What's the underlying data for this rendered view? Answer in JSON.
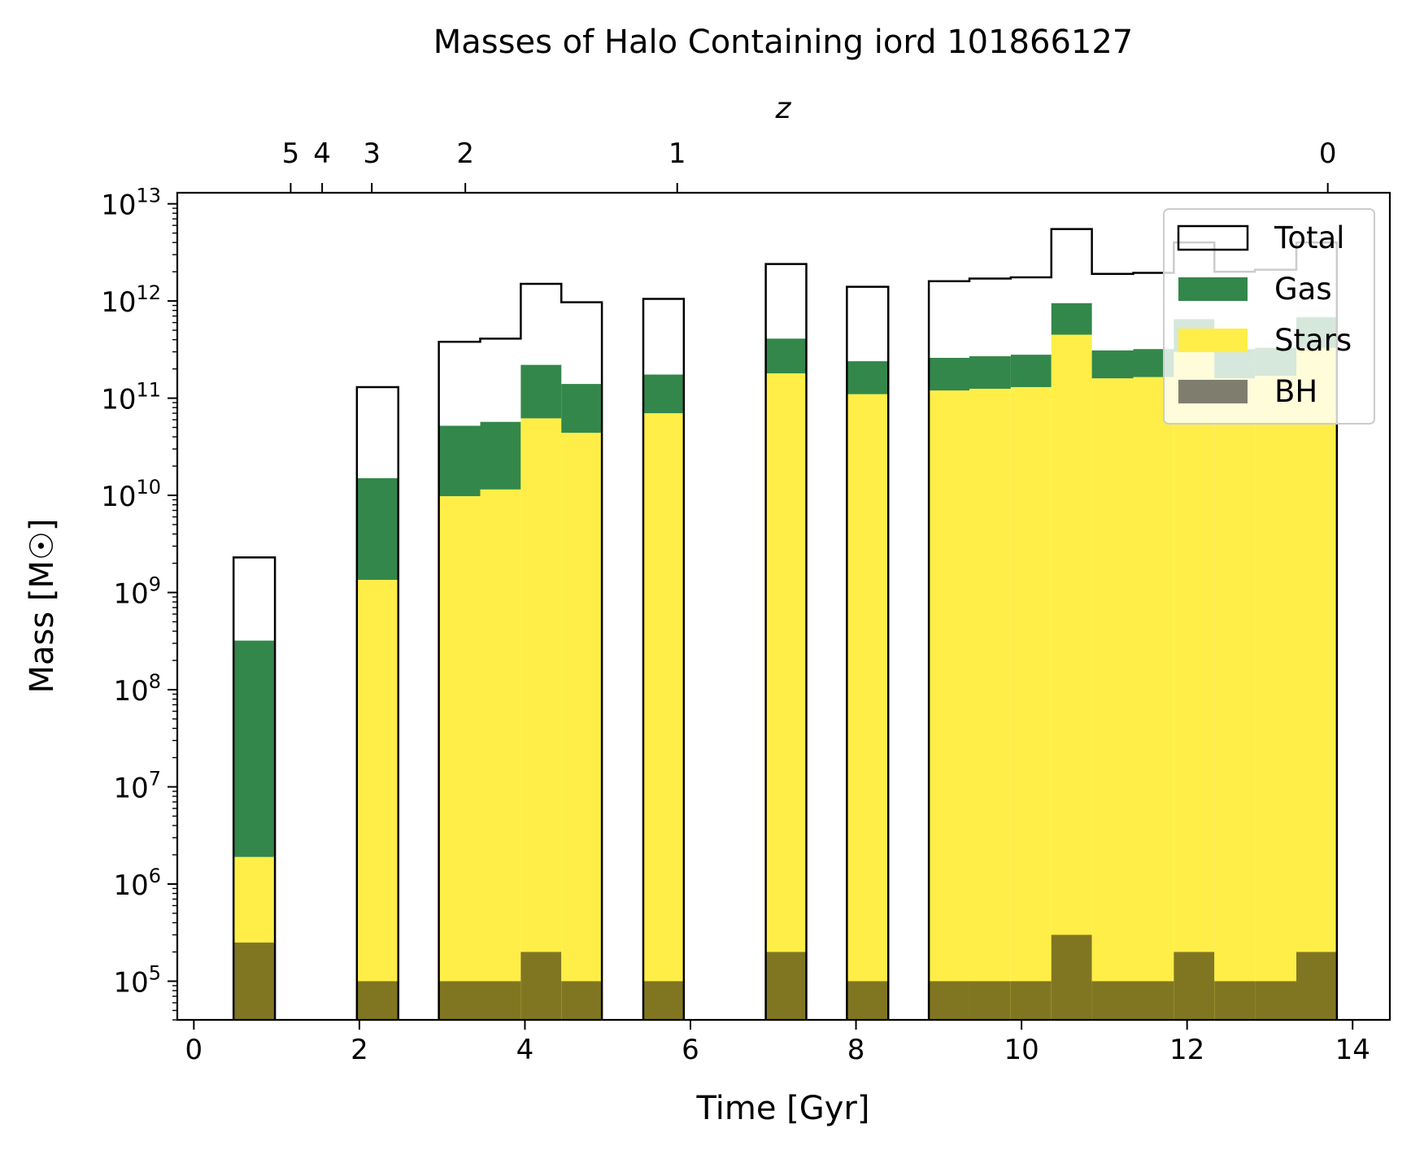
{
  "chart_data": {
    "type": "bar",
    "title": "Masses of Halo Containing iord 101866127",
    "xlabel": "Time [Gyr]",
    "ylabel": "Mass [M☉]",
    "top_axis_label": "z",
    "yscale": "log",
    "xlim": [
      -0.2,
      14.45
    ],
    "ylim": [
      40000,
      13000000000000.0
    ],
    "x_ticks": [
      0,
      2,
      4,
      6,
      8,
      10,
      12,
      14
    ],
    "y_tick_exponents": [
      5,
      6,
      7,
      8,
      9,
      10,
      11,
      12,
      13
    ],
    "y_tick_base": "10",
    "top_ticks": [
      {
        "label": "5",
        "time": 1.17
      },
      {
        "label": "4",
        "time": 1.55
      },
      {
        "label": "3",
        "time": 2.15
      },
      {
        "label": "2",
        "time": 3.28
      },
      {
        "label": "1",
        "time": 5.84
      },
      {
        "label": "0",
        "time": 13.7
      }
    ],
    "legend_position": "top-right",
    "colors": {
      "total": "#000000",
      "gas": "#33874a",
      "stars": "#ffee47",
      "bh": "#807622",
      "bh_legend": "#7f7e6e"
    },
    "bins": [
      {
        "x0": 0.48,
        "x1": 0.98,
        "total": 2300000000.0,
        "gas": 320000000.0,
        "stars": 1900000.0,
        "bh": 250000.0
      },
      {
        "x0": 1.97,
        "x1": 2.47,
        "total": 130000000000.0,
        "gas": 15000000000.0,
        "stars": 1350000000.0,
        "bh": 100000.0
      },
      {
        "x0": 2.96,
        "x1": 3.46,
        "total": 380000000000.0,
        "gas": 52000000000.0,
        "stars": 9800000000.0,
        "bh": 100000.0
      },
      {
        "x0": 3.46,
        "x1": 3.95,
        "total": 410000000000.0,
        "gas": 57000000000.0,
        "stars": 11500000000.0,
        "bh": 100000.0
      },
      {
        "x0": 3.95,
        "x1": 4.44,
        "total": 1500000000000.0,
        "gas": 220000000000.0,
        "stars": 62000000000.0,
        "bh": 200000.0
      },
      {
        "x0": 4.44,
        "x1": 4.93,
        "total": 970000000000.0,
        "gas": 140000000000.0,
        "stars": 44000000000.0,
        "bh": 100000.0
      },
      {
        "x0": 5.43,
        "x1": 5.92,
        "total": 1050000000000.0,
        "gas": 175000000000.0,
        "stars": 70000000000.0,
        "bh": 100000.0
      },
      {
        "x0": 6.91,
        "x1": 7.4,
        "total": 2400000000000.0,
        "gas": 410000000000.0,
        "stars": 180000000000.0,
        "bh": 200000.0
      },
      {
        "x0": 7.89,
        "x1": 8.39,
        "total": 1400000000000.0,
        "gas": 240000000000.0,
        "stars": 110000000000.0,
        "bh": 100000.0
      },
      {
        "x0": 8.88,
        "x1": 9.37,
        "total": 1600000000000.0,
        "gas": 260000000000.0,
        "stars": 120000000000.0,
        "bh": 100000.0
      },
      {
        "x0": 9.37,
        "x1": 9.87,
        "total": 1700000000000.0,
        "gas": 270000000000.0,
        "stars": 125000000000.0,
        "bh": 100000.0
      },
      {
        "x0": 9.87,
        "x1": 10.36,
        "total": 1750000000000.0,
        "gas": 280000000000.0,
        "stars": 130000000000.0,
        "bh": 100000.0
      },
      {
        "x0": 10.36,
        "x1": 10.85,
        "total": 5500000000000.0,
        "gas": 950000000000.0,
        "stars": 450000000000.0,
        "bh": 300000.0
      },
      {
        "x0": 10.85,
        "x1": 11.35,
        "total": 1900000000000.0,
        "gas": 310000000000.0,
        "stars": 160000000000.0,
        "bh": 100000.0
      },
      {
        "x0": 11.35,
        "x1": 11.84,
        "total": 1950000000000.0,
        "gas": 320000000000.0,
        "stars": 165000000000.0,
        "bh": 100000.0
      },
      {
        "x0": 11.84,
        "x1": 12.33,
        "total": 4000000000000.0,
        "gas": 650000000000.0,
        "stars": 300000000000.0,
        "bh": 200000.0
      },
      {
        "x0": 12.33,
        "x1": 12.82,
        "total": 2000000000000.0,
        "gas": 320000000000.0,
        "stars": 160000000000.0,
        "bh": 100000.0
      },
      {
        "x0": 12.82,
        "x1": 13.32,
        "total": 2100000000000.0,
        "gas": 330000000000.0,
        "stars": 170000000000.0,
        "bh": 100000.0
      },
      {
        "x0": 13.32,
        "x1": 13.81,
        "total": 4000000000000.0,
        "gas": 680000000000.0,
        "stars": 330000000000.0,
        "bh": 200000.0
      }
    ],
    "series": [
      {
        "name": "Total"
      },
      {
        "name": "Gas"
      },
      {
        "name": "Stars"
      },
      {
        "name": "BH"
      }
    ]
  }
}
